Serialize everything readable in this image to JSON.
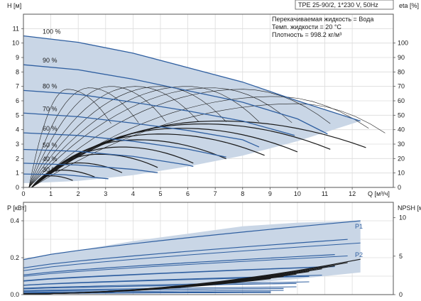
{
  "chart_data": [
    {
      "type": "line",
      "title": "TPE 25-90/2, 1*230 V, 50Hz",
      "annotations": [
        "Перекачиваемая жидкость = Вода",
        "Темп. жидкости = 20 °C",
        "Плотность = 998.2 кг/м³"
      ],
      "xlabel": "Q [м³/ч]",
      "ylabel": "H [м]",
      "y2label": "eta [%]",
      "xlim": [
        0,
        13.5
      ],
      "ylim": [
        0,
        12
      ],
      "y2lim": [
        0,
        120
      ],
      "x_ticks": [
        0,
        1,
        2,
        3,
        4,
        5,
        6,
        7,
        8,
        9,
        10,
        11,
        12
      ],
      "y_ticks": [
        0,
        1,
        2,
        3,
        4,
        5,
        6,
        7,
        8,
        9,
        10,
        11
      ],
      "y2_ticks": [
        0,
        10,
        20,
        30,
        40,
        50,
        60,
        70,
        80,
        90,
        100
      ],
      "grid": true,
      "curve_colors": {
        "head": "#2f5fa0",
        "efficiency": "#1a1a1a",
        "area": "#c9d6e6"
      },
      "series": [
        {
          "name": "100 %",
          "x": [
            0,
            2,
            4,
            6,
            8,
            10,
            12.3
          ],
          "values": [
            10.5,
            10.05,
            9.3,
            8.3,
            7.3,
            6.0,
            4.6
          ]
        },
        {
          "name": "90 %",
          "x": [
            0,
            2,
            4,
            6,
            8,
            10,
            11.1
          ],
          "values": [
            8.5,
            8.15,
            7.5,
            6.7,
            5.9,
            4.75,
            3.7
          ]
        },
        {
          "name": "80 %",
          "x": [
            0,
            2,
            4,
            6,
            8,
            9.9
          ],
          "values": [
            6.72,
            6.45,
            5.9,
            5.3,
            4.6,
            3.6
          ]
        },
        {
          "name": "70 %",
          "x": [
            0,
            2,
            4,
            6,
            8,
            8.6
          ],
          "values": [
            5.15,
            4.9,
            4.45,
            3.95,
            3.3,
            2.8
          ]
        },
        {
          "name": "60 %",
          "x": [
            0,
            2,
            4,
            6,
            7.4
          ],
          "values": [
            3.78,
            3.6,
            3.2,
            2.65,
            2.1
          ]
        },
        {
          "name": "50 %",
          "x": [
            0,
            2,
            4,
            6,
            6.2
          ],
          "values": [
            2.63,
            2.5,
            2.15,
            1.55,
            1.45
          ]
        },
        {
          "name": "40 %",
          "x": [
            0,
            2,
            4,
            4.9
          ],
          "values": [
            1.68,
            1.55,
            1.25,
            1.02
          ]
        },
        {
          "name": "30 %",
          "x": [
            0,
            1.5,
            3.1
          ],
          "values": [
            0.93,
            0.88,
            0.6
          ]
        }
      ],
      "efficiency_max_pct": [
        46,
        45,
        41,
        38,
        33,
        28,
        23,
        18,
        13,
        8,
        70,
        70,
        70,
        68,
        60
      ]
    },
    {
      "type": "line",
      "xlabel": "",
      "ylabel": "P [кВт]",
      "y2label": "NPSH [м]",
      "xlim": [
        0,
        13.5
      ],
      "ylim": [
        0,
        0.5
      ],
      "y2lim": [
        0,
        12
      ],
      "y_ticks": [
        0,
        0.2,
        0.4
      ],
      "y2_ticks": [
        0,
        5,
        10
      ],
      "series": [
        {
          "name": "P1",
          "x": [
            0,
            2,
            4,
            6,
            8,
            10,
            12.3
          ],
          "values": [
            0.19,
            0.24,
            0.29,
            0.33,
            0.37,
            0.39,
            0.4
          ]
        },
        {
          "name": "P2",
          "x": [
            0,
            2,
            4,
            6,
            8,
            10,
            12.3
          ],
          "values": [
            0.13,
            0.16,
            0.19,
            0.22,
            0.24,
            0.26,
            0.28
          ]
        },
        {
          "name": "NPSH",
          "x": [
            0,
            2,
            4,
            6,
            8,
            10,
            12.3
          ],
          "values": [
            0.1,
            0.4,
            0.9,
            1.6,
            2.5,
            3.6,
            4.6
          ]
        }
      ]
    }
  ]
}
